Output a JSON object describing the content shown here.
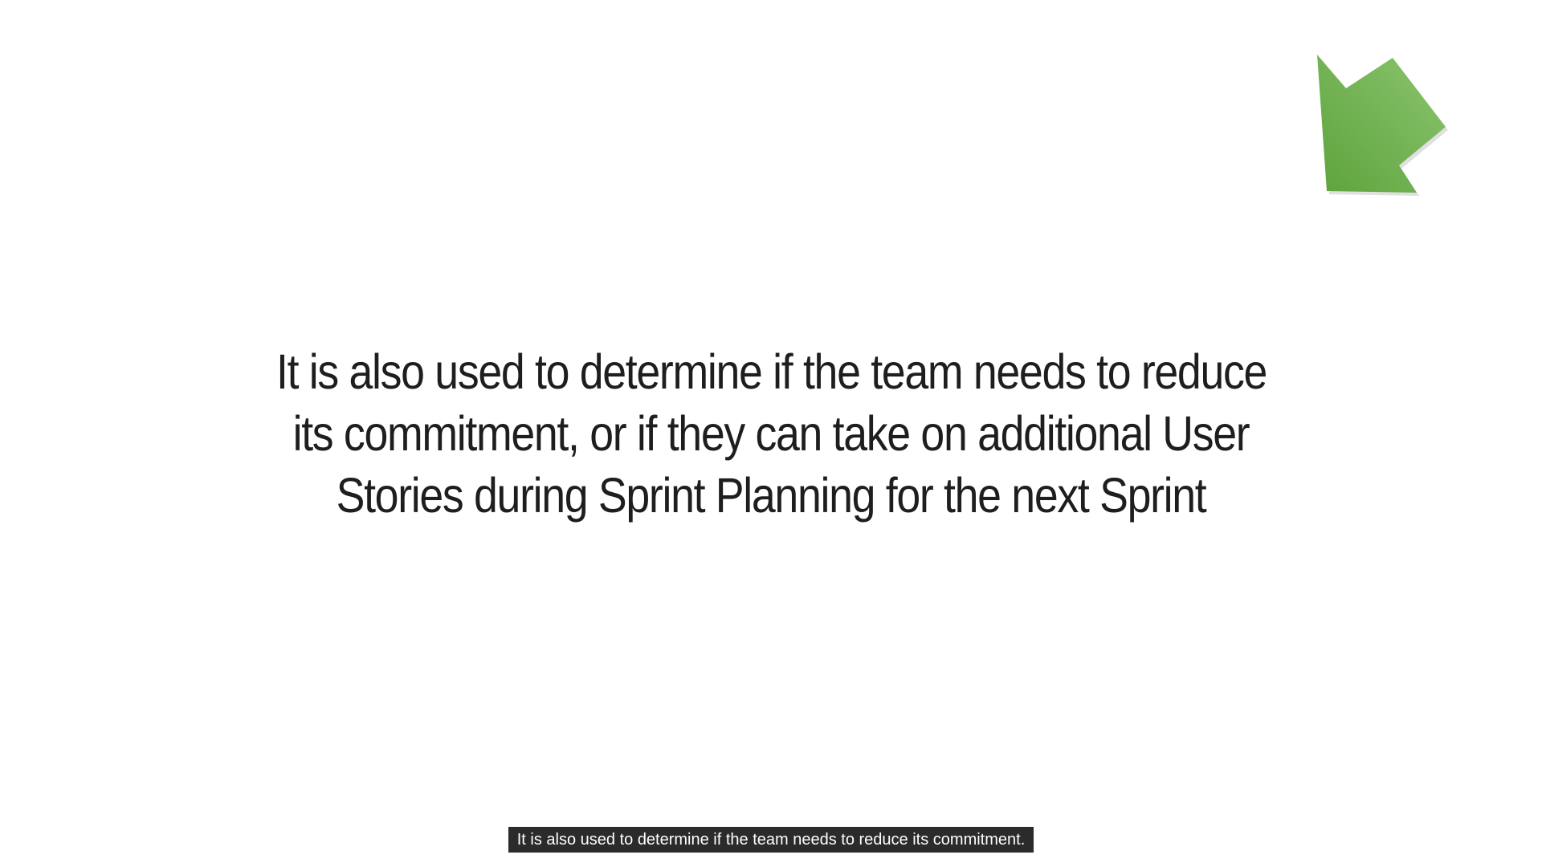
{
  "slide": {
    "lines": [
      "It is also used to determine if the team needs to reduce",
      "its commitment, or if they can take on additional User",
      "Stories during Sprint Planning for the next Sprint"
    ]
  },
  "caption": {
    "text": "It is also used to determine if the team needs to reduce its commitment."
  },
  "colors": {
    "arrow": "#6ab04c",
    "arrow_light": "#8cc46f",
    "caption_bg": "#2b2b2b",
    "caption_text": "#ffffff",
    "slide_text": "#1e1e1e"
  },
  "icons": {
    "arrow": "green-down-left-arrow-icon"
  }
}
